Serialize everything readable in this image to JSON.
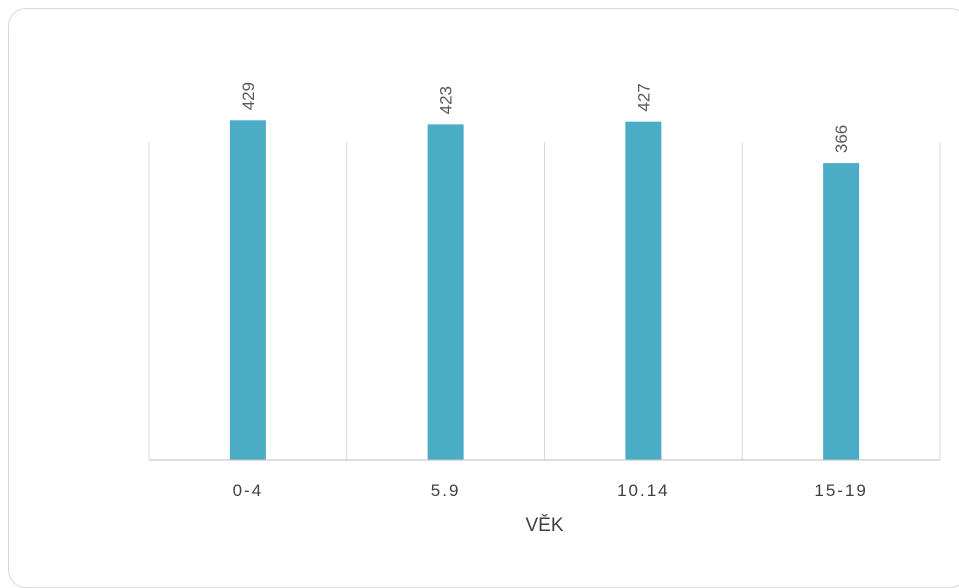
{
  "chart_data": {
    "type": "bar",
    "categories": [
      "0-4",
      "5.9",
      "10.14",
      "15-19"
    ],
    "values": [
      429,
      423,
      427,
      366
    ],
    "title": "",
    "xlabel": "VĚK",
    "ylabel": "",
    "ylim": [
      0,
      500
    ],
    "grid": "vertical category separators",
    "legend": "none",
    "bar_color": "#4bacc6",
    "grid_color": "#d9d9d9",
    "axis_color": "#bfbfbf",
    "data_labels": [
      "429",
      "423",
      "427",
      "366"
    ]
  }
}
